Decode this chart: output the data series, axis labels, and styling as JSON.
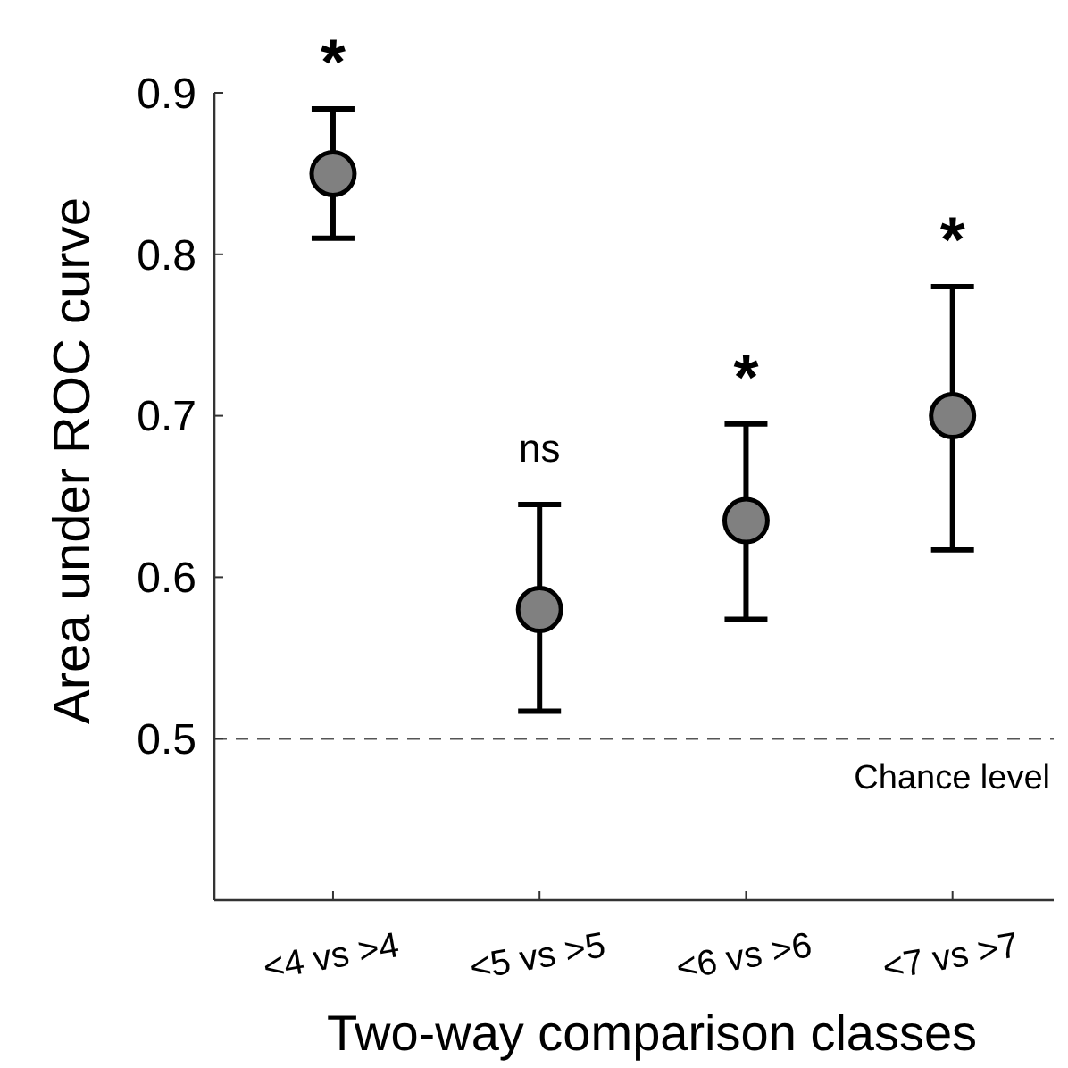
{
  "chart_data": {
    "type": "scatter",
    "xlabel": "Two-way comparison classes",
    "ylabel": "Area under ROC curve",
    "categories": [
      "<4 vs >4",
      "<5 vs >5",
      "<6 vs >6",
      "<7 vs >7"
    ],
    "series": [
      {
        "color": "#808080",
        "values": [
          0.85,
          0.58,
          0.635,
          0.7
        ],
        "errors": [
          [
            0.81,
            0.89
          ],
          [
            0.517,
            0.645
          ],
          [
            0.574,
            0.695
          ],
          [
            0.617,
            0.78
          ]
        ]
      }
    ],
    "ylim": [
      0.4,
      0.9
    ],
    "yticks": [
      0.5,
      0.6,
      0.7,
      0.8,
      0.9
    ],
    "marker": "circle",
    "grid": false,
    "ref_lines": [
      {
        "axis": "y",
        "value": 0.5,
        "label": "Chance level",
        "color": "#555555",
        "line_style": "dashed"
      }
    ],
    "annotations": [
      "*",
      "ns",
      "*",
      "*"
    ]
  }
}
